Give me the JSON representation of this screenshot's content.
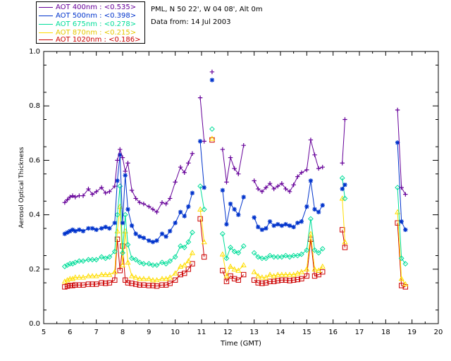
{
  "info": {
    "location": "PML, N 50 22', W 04 08', Alt 0m",
    "date_line": "Data from: 14 Jul 2003"
  },
  "legend": [
    {
      "label": "AOT  400nm : <0.535>",
      "color": "#660099"
    },
    {
      "label": "AOT  500nm : <0.398>",
      "color": "#0033cc"
    },
    {
      "label": "AOT  675nm : <0.278>",
      "color": "#00dd99"
    },
    {
      "label": "AOT  870nm : <0.215>",
      "color": "#ffdd00"
    },
    {
      "label": "AOT 1020nm : <0.186>",
      "color": "#cc0000"
    }
  ],
  "chart_data": {
    "type": "line",
    "title": "",
    "xlabel": "Time (GMT)",
    "ylabel": "Aerosol Optical Thickness",
    "xlim": [
      5,
      20
    ],
    "ylim": [
      0.0,
      1.0
    ],
    "xticks": [
      5,
      6,
      7,
      8,
      9,
      10,
      11,
      12,
      13,
      14,
      15,
      16,
      17,
      18,
      19,
      20
    ],
    "yticks": [
      0.0,
      0.2,
      0.4,
      0.6,
      0.8,
      1.0
    ],
    "ytick_labels": [
      "0.0",
      "0.2",
      "0.4",
      "0.6",
      "0.8",
      "1.0"
    ],
    "segments": [
      {
        "x": [
          5.8,
          5.9,
          6.0,
          6.1,
          6.2,
          6.35,
          6.5,
          6.7,
          6.85,
          7.0,
          7.2,
          7.35,
          7.5,
          7.7,
          7.8,
          7.9,
          8.0,
          8.1,
          8.2,
          8.35,
          8.5,
          8.65,
          8.8,
          9.0,
          9.15,
          9.3,
          9.5,
          9.65,
          9.8,
          10.0,
          10.2,
          10.35,
          10.5,
          10.65
        ]
      },
      {
        "x": [
          10.95,
          11.1
        ]
      },
      {
        "x": [
          11.4
        ]
      },
      {
        "x": [
          11.8,
          11.95,
          12.1,
          12.25,
          12.4,
          12.6
        ]
      },
      {
        "x": [
          13.0,
          13.15,
          13.3,
          13.45,
          13.6,
          13.75,
          13.9,
          14.05,
          14.2,
          14.35,
          14.5,
          14.65,
          14.8,
          15.0,
          15.15,
          15.3,
          15.45,
          15.6
        ]
      },
      {
        "x": [
          16.35,
          16.45
        ]
      },
      {
        "x": [
          18.45,
          18.6,
          18.75
        ]
      }
    ],
    "series": [
      {
        "name": "AOT 400nm",
        "marker": "plus",
        "segments": [
          [
            0.445,
            0.455,
            0.465,
            0.47,
            0.465,
            0.47,
            0.47,
            0.495,
            0.475,
            0.485,
            0.5,
            0.48,
            0.485,
            0.505,
            0.6,
            0.64,
            0.61,
            0.56,
            0.59,
            0.49,
            0.46,
            0.445,
            0.44,
            0.43,
            0.42,
            0.41,
            0.445,
            0.44,
            0.46,
            0.52,
            0.575,
            0.555,
            0.59,
            0.625
          ],
          [
            0.83,
            0.67
          ],
          [
            0.925
          ],
          [
            0.64,
            0.52,
            0.61,
            0.57,
            0.55,
            0.655
          ],
          [
            0.525,
            0.495,
            0.485,
            0.5,
            0.515,
            0.495,
            0.505,
            0.515,
            0.495,
            0.485,
            0.51,
            0.54,
            0.555,
            0.565,
            0.675,
            0.62,
            0.57,
            0.575
          ],
          [
            0.59,
            0.75
          ],
          [
            0.785,
            0.5,
            0.475
          ]
        ]
      },
      {
        "name": "AOT 500nm",
        "marker": "asterisk",
        "segments": [
          [
            0.33,
            0.335,
            0.34,
            0.345,
            0.34,
            0.345,
            0.34,
            0.35,
            0.35,
            0.345,
            0.35,
            0.355,
            0.35,
            0.37,
            0.525,
            0.62,
            0.37,
            0.545,
            0.42,
            0.36,
            0.33,
            0.32,
            0.315,
            0.305,
            0.3,
            0.305,
            0.33,
            0.32,
            0.34,
            0.37,
            0.41,
            0.395,
            0.43,
            0.48
          ],
          [
            0.67,
            0.5
          ],
          [
            0.895
          ],
          [
            0.49,
            0.365,
            0.44,
            0.42,
            0.4,
            0.465
          ],
          [
            0.39,
            0.355,
            0.345,
            0.35,
            0.375,
            0.36,
            0.365,
            0.36,
            0.365,
            0.36,
            0.355,
            0.37,
            0.375,
            0.43,
            0.525,
            0.42,
            0.41,
            0.435
          ],
          [
            0.495,
            0.51
          ],
          [
            0.665,
            0.375,
            0.345
          ]
        ]
      },
      {
        "name": "AOT 675nm",
        "marker": "diamond",
        "segments": [
          [
            0.21,
            0.215,
            0.22,
            0.22,
            0.225,
            0.23,
            0.23,
            0.235,
            0.235,
            0.235,
            0.245,
            0.24,
            0.245,
            0.265,
            0.4,
            0.505,
            0.26,
            0.4,
            0.29,
            0.24,
            0.235,
            0.225,
            0.22,
            0.22,
            0.215,
            0.215,
            0.225,
            0.22,
            0.23,
            0.245,
            0.285,
            0.28,
            0.3,
            0.335
          ],
          [
            0.505,
            0.42
          ],
          [
            0.715
          ],
          [
            0.33,
            0.24,
            0.28,
            0.265,
            0.26,
            0.285
          ],
          [
            0.26,
            0.245,
            0.24,
            0.24,
            0.25,
            0.245,
            0.245,
            0.245,
            0.25,
            0.245,
            0.25,
            0.25,
            0.255,
            0.27,
            0.385,
            0.27,
            0.26,
            0.275
          ],
          [
            0.535,
            0.46
          ],
          [
            0.5,
            0.24,
            0.22
          ]
        ]
      },
      {
        "name": "AOT 870nm",
        "marker": "triangle",
        "segments": [
          [
            0.155,
            0.16,
            0.165,
            0.165,
            0.17,
            0.17,
            0.17,
            0.175,
            0.175,
            0.175,
            0.18,
            0.18,
            0.18,
            0.19,
            0.34,
            0.43,
            0.215,
            0.34,
            0.225,
            0.175,
            0.17,
            0.165,
            0.165,
            0.165,
            0.16,
            0.16,
            0.165,
            0.165,
            0.17,
            0.185,
            0.21,
            0.215,
            0.23,
            0.26
          ],
          [
            0.42,
            0.3
          ],
          [
            0.68
          ],
          [
            0.255,
            0.175,
            0.21,
            0.2,
            0.195,
            0.215
          ],
          [
            0.19,
            0.175,
            0.17,
            0.17,
            0.18,
            0.175,
            0.18,
            0.18,
            0.18,
            0.18,
            0.18,
            0.185,
            0.19,
            0.2,
            0.33,
            0.2,
            0.195,
            0.21
          ],
          [
            0.46,
            0.3
          ],
          [
            0.41,
            0.165,
            0.145
          ]
        ]
      },
      {
        "name": "AOT 1020nm",
        "marker": "square",
        "segments": [
          [
            0.135,
            0.138,
            0.14,
            0.14,
            0.142,
            0.142,
            0.142,
            0.145,
            0.145,
            0.145,
            0.15,
            0.148,
            0.15,
            0.16,
            0.31,
            0.195,
            0.285,
            0.16,
            0.15,
            0.148,
            0.145,
            0.142,
            0.142,
            0.14,
            0.14,
            0.138,
            0.142,
            0.142,
            0.148,
            0.16,
            0.18,
            0.185,
            0.2,
            0.22
          ],
          [
            0.385,
            0.245
          ],
          [
            0.675
          ],
          [
            0.195,
            0.155,
            0.175,
            0.165,
            0.16,
            0.18
          ],
          [
            0.16,
            0.15,
            0.148,
            0.15,
            0.155,
            0.155,
            0.158,
            0.16,
            0.16,
            0.158,
            0.16,
            0.162,
            0.165,
            0.175,
            0.31,
            0.175,
            0.18,
            0.19
          ],
          [
            0.345,
            0.28
          ],
          [
            0.37,
            0.14,
            0.135
          ]
        ]
      }
    ]
  }
}
